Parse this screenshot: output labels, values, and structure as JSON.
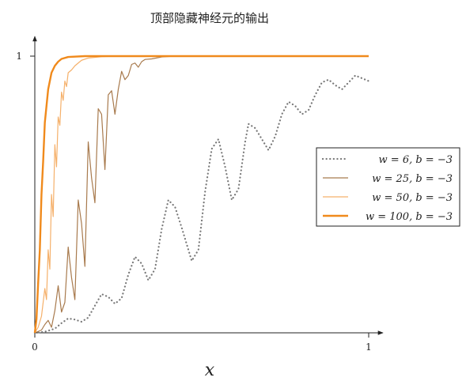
{
  "chart_data": {
    "type": "line",
    "title": "顶部隐藏神经元的输出",
    "xlabel": "x",
    "ylabel": "",
    "xlim": [
      0,
      1
    ],
    "ylim": [
      0,
      1
    ],
    "xticks": [
      {
        "value": 0,
        "label": "0"
      },
      {
        "value": 1,
        "label": "1"
      }
    ],
    "yticks": [
      {
        "value": 1,
        "label": "1"
      }
    ],
    "grid": false,
    "legend_position": "right",
    "series": [
      {
        "name": "w = 6, b = −3",
        "color": "#777777",
        "style": "dotted",
        "points": [
          [
            0.0,
            0.0
          ],
          [
            0.03,
            0.004
          ],
          [
            0.06,
            0.015
          ],
          [
            0.08,
            0.035
          ],
          [
            0.1,
            0.052
          ],
          [
            0.12,
            0.048
          ],
          [
            0.14,
            0.04
          ],
          [
            0.16,
            0.055
          ],
          [
            0.18,
            0.098
          ],
          [
            0.2,
            0.14
          ],
          [
            0.22,
            0.13
          ],
          [
            0.24,
            0.105
          ],
          [
            0.26,
            0.125
          ],
          [
            0.28,
            0.21
          ],
          [
            0.3,
            0.275
          ],
          [
            0.32,
            0.25
          ],
          [
            0.34,
            0.19
          ],
          [
            0.36,
            0.23
          ],
          [
            0.38,
            0.375
          ],
          [
            0.4,
            0.48
          ],
          [
            0.42,
            0.455
          ],
          [
            0.44,
            0.38
          ],
          [
            0.47,
            0.26
          ],
          [
            0.49,
            0.3
          ],
          [
            0.51,
            0.51
          ],
          [
            0.53,
            0.665
          ],
          [
            0.55,
            0.7
          ],
          [
            0.57,
            0.6
          ],
          [
            0.59,
            0.48
          ],
          [
            0.61,
            0.52
          ],
          [
            0.63,
            0.69
          ],
          [
            0.64,
            0.755
          ],
          [
            0.66,
            0.74
          ],
          [
            0.68,
            0.7
          ],
          [
            0.7,
            0.66
          ],
          [
            0.72,
            0.71
          ],
          [
            0.74,
            0.79
          ],
          [
            0.76,
            0.835
          ],
          [
            0.78,
            0.82
          ],
          [
            0.8,
            0.79
          ],
          [
            0.82,
            0.805
          ],
          [
            0.84,
            0.86
          ],
          [
            0.86,
            0.905
          ],
          [
            0.88,
            0.915
          ],
          [
            0.9,
            0.895
          ],
          [
            0.92,
            0.88
          ],
          [
            0.94,
            0.905
          ],
          [
            0.96,
            0.93
          ],
          [
            0.98,
            0.92
          ],
          [
            1.0,
            0.91
          ]
        ]
      },
      {
        "name": "w = 25, b = −3",
        "color": "#a87a4d",
        "style": "solid",
        "points": [
          [
            0.0,
            0.0
          ],
          [
            0.02,
            0.01
          ],
          [
            0.03,
            0.03
          ],
          [
            0.04,
            0.045
          ],
          [
            0.05,
            0.02
          ],
          [
            0.06,
            0.08
          ],
          [
            0.07,
            0.17
          ],
          [
            0.08,
            0.075
          ],
          [
            0.09,
            0.11
          ],
          [
            0.1,
            0.31
          ],
          [
            0.11,
            0.2
          ],
          [
            0.12,
            0.12
          ],
          [
            0.13,
            0.48
          ],
          [
            0.14,
            0.395
          ],
          [
            0.15,
            0.24
          ],
          [
            0.16,
            0.69
          ],
          [
            0.17,
            0.56
          ],
          [
            0.18,
            0.47
          ],
          [
            0.19,
            0.81
          ],
          [
            0.2,
            0.79
          ],
          [
            0.21,
            0.59
          ],
          [
            0.22,
            0.86
          ],
          [
            0.23,
            0.875
          ],
          [
            0.24,
            0.79
          ],
          [
            0.25,
            0.88
          ],
          [
            0.26,
            0.945
          ],
          [
            0.27,
            0.915
          ],
          [
            0.28,
            0.93
          ],
          [
            0.29,
            0.97
          ],
          [
            0.3,
            0.975
          ],
          [
            0.31,
            0.96
          ],
          [
            0.32,
            0.98
          ],
          [
            0.33,
            0.988
          ],
          [
            0.35,
            0.99
          ],
          [
            0.38,
            0.997
          ],
          [
            0.42,
            1.0
          ],
          [
            0.6,
            1.0
          ],
          [
            0.8,
            1.0
          ],
          [
            1.0,
            1.0
          ]
        ]
      },
      {
        "name": "w = 50, b = −3",
        "color": "#f5b06a",
        "style": "solid",
        "points": [
          [
            0.0,
            0.0
          ],
          [
            0.01,
            0.02
          ],
          [
            0.02,
            0.06
          ],
          [
            0.03,
            0.16
          ],
          [
            0.035,
            0.12
          ],
          [
            0.04,
            0.3
          ],
          [
            0.045,
            0.23
          ],
          [
            0.05,
            0.5
          ],
          [
            0.055,
            0.42
          ],
          [
            0.06,
            0.68
          ],
          [
            0.065,
            0.6
          ],
          [
            0.07,
            0.78
          ],
          [
            0.075,
            0.75
          ],
          [
            0.08,
            0.87
          ],
          [
            0.085,
            0.84
          ],
          [
            0.09,
            0.91
          ],
          [
            0.095,
            0.89
          ],
          [
            0.1,
            0.94
          ],
          [
            0.11,
            0.95
          ],
          [
            0.12,
            0.965
          ],
          [
            0.13,
            0.975
          ],
          [
            0.14,
            0.985
          ],
          [
            0.16,
            0.993
          ],
          [
            0.2,
            0.998
          ],
          [
            0.25,
            1.0
          ],
          [
            0.5,
            1.0
          ],
          [
            0.75,
            1.0
          ],
          [
            1.0,
            1.0
          ]
        ]
      },
      {
        "name": "w = 100, b = −3",
        "color": "#f08a1c",
        "style": "solid-thick",
        "points": [
          [
            0.0,
            0.0
          ],
          [
            0.005,
            0.05
          ],
          [
            0.01,
            0.18
          ],
          [
            0.015,
            0.3
          ],
          [
            0.02,
            0.5
          ],
          [
            0.025,
            0.62
          ],
          [
            0.03,
            0.76
          ],
          [
            0.035,
            0.82
          ],
          [
            0.04,
            0.88
          ],
          [
            0.045,
            0.91
          ],
          [
            0.05,
            0.94
          ],
          [
            0.06,
            0.965
          ],
          [
            0.07,
            0.98
          ],
          [
            0.08,
            0.99
          ],
          [
            0.1,
            0.997
          ],
          [
            0.15,
            1.0
          ],
          [
            0.5,
            1.0
          ],
          [
            1.0,
            1.0
          ]
        ]
      }
    ]
  }
}
